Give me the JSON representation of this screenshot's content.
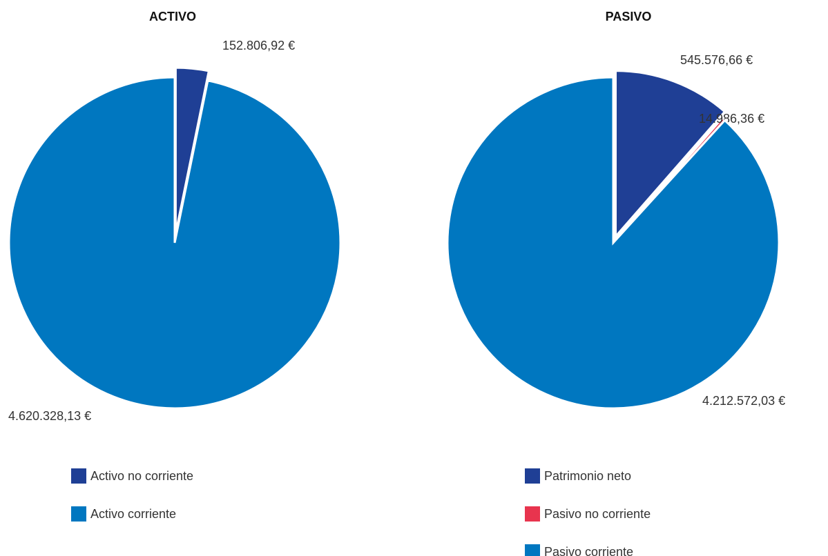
{
  "chart_data": [
    {
      "type": "pie",
      "title": "ACTIVO",
      "categories": [
        "Activo no corriente",
        "Activo corriente"
      ],
      "values": [
        152806.92,
        4620328.13
      ],
      "value_labels": [
        "152.806,92 €",
        "4.620.328,13 €"
      ],
      "colors": [
        "#1f3f95",
        "#0077c0"
      ]
    },
    {
      "type": "pie",
      "title": "PASIVO",
      "categories": [
        "Patrimonio neto",
        "Pasivo no corriente",
        "Pasivo corriente"
      ],
      "values": [
        545576.66,
        14986.36,
        4212572.03
      ],
      "value_labels": [
        "545.576,66 €",
        "14.986,36 €",
        "4.212.572,03 €"
      ],
      "colors": [
        "#1f3f95",
        "#e8344e",
        "#0077c0"
      ]
    }
  ]
}
